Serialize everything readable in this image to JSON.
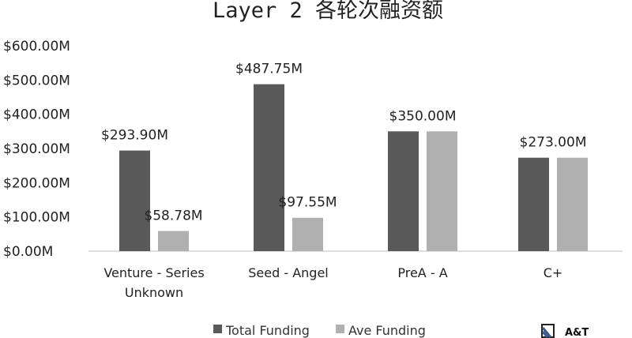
{
  "chart_data": {
    "type": "bar",
    "title": "Layer 2 各轮次融资额",
    "categories": [
      [
        "Venture - Series",
        "Unknown"
      ],
      [
        "Seed - Angel"
      ],
      [
        "PreA - A"
      ],
      [
        "C+"
      ]
    ],
    "series": [
      {
        "name": "Total Funding",
        "color": "#595959",
        "values": [
          293.9,
          487.75,
          350.0,
          273.0
        ],
        "labels": [
          "$293.90M",
          "$487.75M",
          "$350.00M",
          "$273.00M"
        ]
      },
      {
        "name": "Ave Funding",
        "color": "#b0b0b0",
        "values": [
          58.78,
          97.55,
          350.0,
          273.0
        ],
        "labels": [
          "$58.78M",
          "$97.55M",
          "",
          ""
        ]
      }
    ],
    "yticks": [
      "$0.00M",
      "$100.00M",
      "$200.00M",
      "$300.00M",
      "$400.00M",
      "$500.00M",
      "$600.00M"
    ],
    "ylim": [
      0,
      600
    ],
    "xlabel": "",
    "ylabel": "",
    "grid": false,
    "legend": "bottom"
  },
  "logo": {
    "text": "A&T"
  }
}
